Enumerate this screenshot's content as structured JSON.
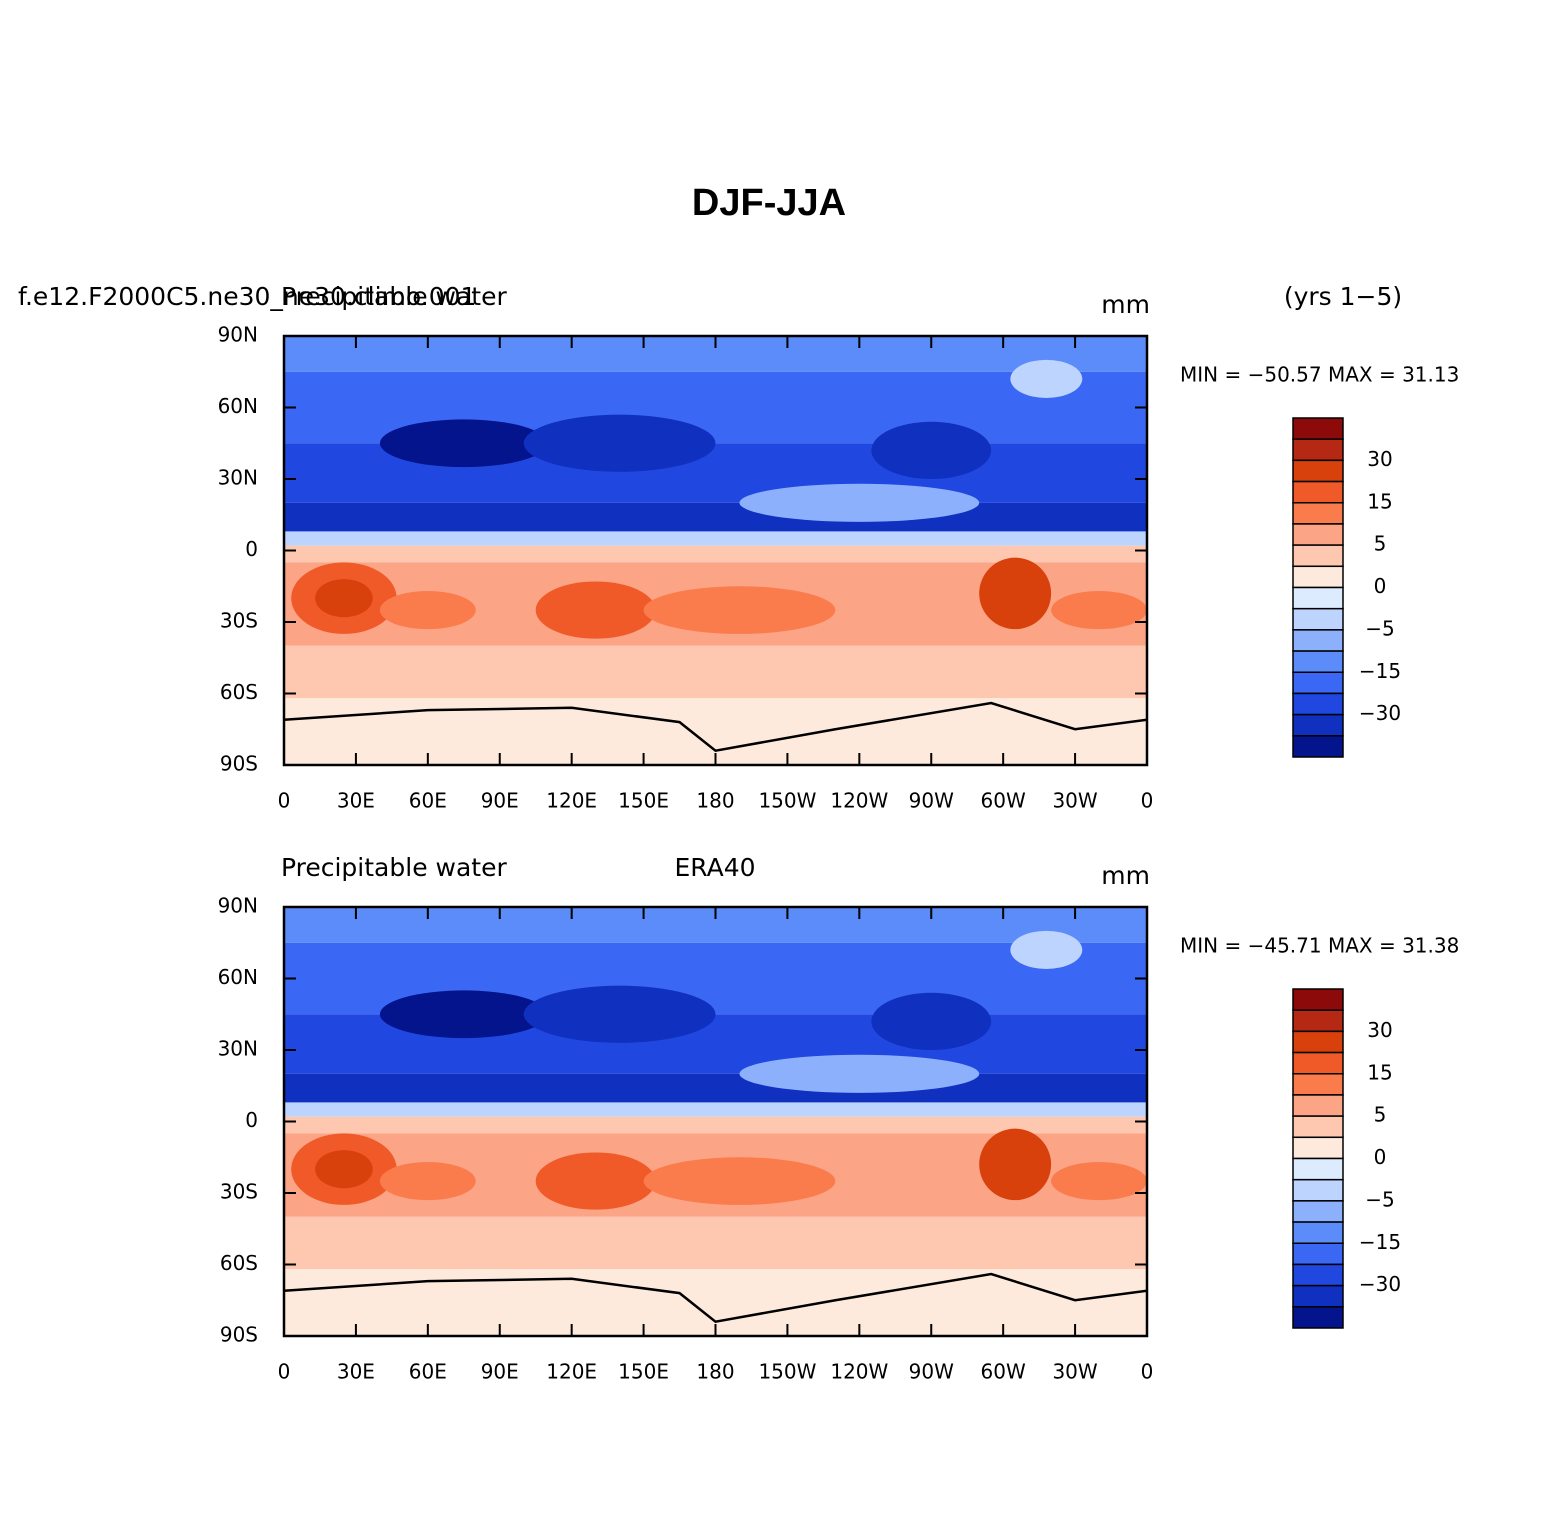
{
  "title": "DJF-JJA",
  "panels": [
    {
      "case": "f.e12.F2000C5.ne30_ne30.climo.001",
      "left": "Precipitable water",
      "center": "(yrs 1−5)",
      "right": "mm",
      "stats": "MIN = −50.57 MAX =  31.13"
    },
    {
      "left": "Precipitable water",
      "center": "ERA40",
      "right": "mm",
      "stats": "MIN = −45.71 MAX =  31.38"
    }
  ],
  "map": {
    "xlim": [
      0,
      360
    ],
    "ylim": [
      -90,
      90
    ],
    "xticks": [
      0,
      {
        "value": 30,
        "label": "30E"
      },
      {
        "value": 60,
        "label": "60E"
      },
      {
        "value": 90,
        "label": "90E"
      },
      {
        "value": 120,
        "label": "120E"
      },
      {
        "value": 150,
        "label": "150E"
      },
      180,
      {
        "value": 210,
        "label": "150W"
      },
      {
        "value": 240,
        "label": "120W"
      },
      {
        "value": 270,
        "label": "90W"
      },
      {
        "value": 300,
        "label": "60W"
      },
      {
        "value": 330,
        "label": "30W"
      },
      {
        "value": 360,
        "label": "0"
      }
    ],
    "yticks": [
      {
        "value": 90,
        "label": "90N"
      },
      {
        "value": 60,
        "label": "60N"
      },
      {
        "value": 30,
        "label": "30N"
      },
      0,
      {
        "value": -30,
        "label": "30S"
      },
      {
        "value": -60,
        "label": "60S"
      },
      {
        "value": -90,
        "label": "90S"
      }
    ]
  },
  "colorbar": {
    "colors": [
      "#8c0a0a",
      "#b42814",
      "#d8400c",
      "#f05a28",
      "#fa7c4c",
      "#fca486",
      "#fec8b0",
      "#feeadc",
      "#dcecfe",
      "#bcd4fe",
      "#8cb0fc",
      "#5c8cfa",
      "#3a68f4",
      "#2048e0",
      "#1030c0",
      "#04148c"
    ],
    "labels": [
      30,
      15,
      5,
      0,
      {
        "value": -5,
        "label": "−5"
      },
      {
        "value": -15,
        "label": "−15"
      },
      {
        "value": -30,
        "label": "−30"
      }
    ]
  }
}
